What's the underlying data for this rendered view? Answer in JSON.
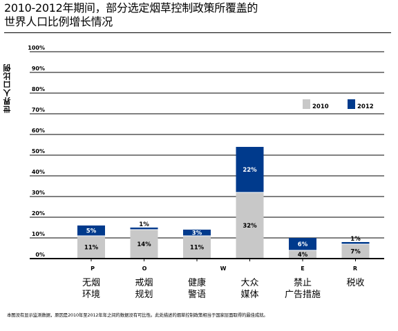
{
  "title": {
    "line1": "2010-2012年期间，部分选定烟草控制政策所覆盖的",
    "line2": "世界人口比例增长情况"
  },
  "footnote": "本图没有显示监测数据，原因是2010年至2012年年之间的数据没有可比性。此处描述的烟草控制政策相当于国家层面取得的最佳成就。",
  "colors": {
    "series_2010": "#c8c8c8",
    "series_2012": "#003a8c",
    "grid": "#000000"
  },
  "chart_data": {
    "type": "bar",
    "stacked": true,
    "ylabel": "世界人口比例",
    "ylim": [
      0,
      100
    ],
    "yticks": [
      "0%",
      "10%",
      "20%",
      "30%",
      "40%",
      "50%",
      "60%",
      "70%",
      "80%",
      "90%",
      "100%"
    ],
    "legend_position": "top-right",
    "letters": [
      "P",
      "O",
      "W",
      "E",
      "R"
    ],
    "categories": [
      {
        "letter": "P",
        "label1": "无烟",
        "label2": "环境"
      },
      {
        "letter": "O",
        "label1": "戒烟",
        "label2": "规划"
      },
      {
        "letter": "",
        "label1": "健康",
        "label2": "警语"
      },
      {
        "letter": "W",
        "label1": "大众",
        "label2": "媒体"
      },
      {
        "letter": "E",
        "label1": "禁止",
        "label2": "广告措施"
      },
      {
        "letter": "R",
        "label1": "税收",
        "label2": ""
      }
    ],
    "series": [
      {
        "name": "2010",
        "values": [
          11,
          14,
          11,
          32,
          4,
          7
        ],
        "labels": [
          "11%",
          "14%",
          "11%",
          "32%",
          "4%",
          "7%"
        ]
      },
      {
        "name": "2012",
        "values": [
          5,
          1,
          3,
          22,
          6,
          1
        ],
        "labels": [
          "5%",
          "1%",
          "3%",
          "22%",
          "6%",
          "1%"
        ]
      }
    ]
  }
}
